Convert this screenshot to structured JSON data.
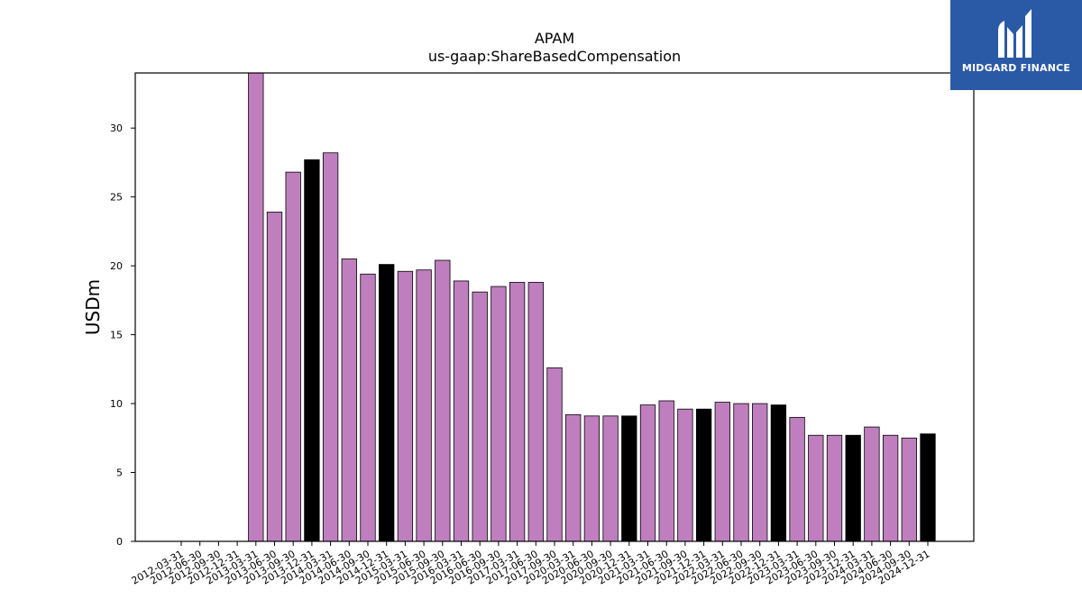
{
  "logo": {
    "text": "MIDGARD FINANCE",
    "icon": "midgard-logo-icon",
    "background": "#2a5aa6"
  },
  "chart_data": {
    "type": "bar",
    "title": "APAM",
    "subtitle": "us-gaap:ShareBasedCompensation",
    "xlabel": "",
    "ylabel": "USDm",
    "ylim": [
      0,
      34
    ],
    "yticks": [
      0,
      5,
      10,
      15,
      20,
      25,
      30
    ],
    "grid": false,
    "colors": {
      "regular": "#bf7fbf",
      "year_end": "#000000",
      "edge": "#000000"
    },
    "categories": [
      "2012-03-31",
      "2012-06-30",
      "2012-09-30",
      "2012-12-31",
      "2013-03-31",
      "2013-06-30",
      "2013-09-30",
      "2013-12-31",
      "2014-03-31",
      "2014-06-30",
      "2014-09-30",
      "2014-12-31",
      "2015-03-31",
      "2015-06-30",
      "2015-09-30",
      "2016-03-31",
      "2016-06-30",
      "2016-09-30",
      "2017-03-31",
      "2017-06-30",
      "2017-09-30",
      "2020-03-31",
      "2020-06-30",
      "2020-09-30",
      "2020-12-31",
      "2021-03-31",
      "2021-06-30",
      "2021-09-30",
      "2021-12-31",
      "2022-03-31",
      "2022-06-30",
      "2022-09-30",
      "2022-12-31",
      "2023-03-31",
      "2023-06-30",
      "2023-09-30",
      "2023-12-31",
      "2024-03-31",
      "2024-06-30",
      "2024-09-30",
      "2024-12-31"
    ],
    "values": [
      0,
      0,
      0,
      0,
      34.0,
      23.9,
      26.8,
      27.7,
      28.2,
      20.5,
      19.4,
      20.1,
      19.6,
      19.7,
      20.4,
      18.9,
      18.1,
      18.5,
      18.8,
      18.8,
      12.6,
      9.2,
      9.1,
      9.1,
      9.1,
      9.9,
      10.2,
      9.6,
      9.6,
      10.1,
      10.0,
      10.0,
      9.9,
      9.0,
      7.7,
      7.7,
      7.7,
      8.3,
      7.7,
      7.5,
      7.8
    ],
    "highlight": [
      false,
      false,
      false,
      false,
      false,
      false,
      false,
      true,
      false,
      false,
      false,
      true,
      false,
      false,
      false,
      false,
      false,
      false,
      false,
      false,
      false,
      false,
      false,
      false,
      true,
      false,
      false,
      false,
      true,
      false,
      false,
      false,
      true,
      false,
      false,
      false,
      true,
      false,
      false,
      false,
      true
    ]
  }
}
